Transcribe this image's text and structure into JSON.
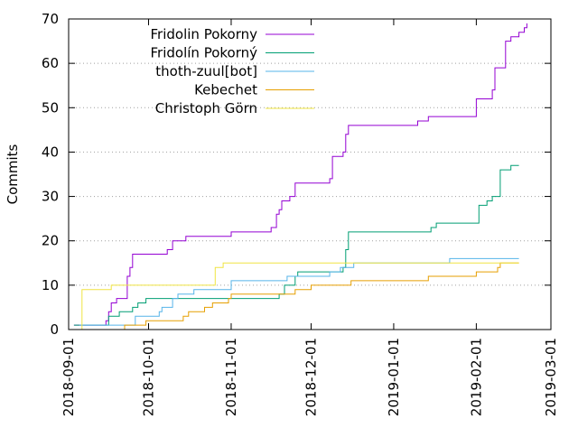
{
  "chart_data": {
    "type": "line",
    "ylabel": "Commits",
    "xlabel": "",
    "ylim": [
      0,
      70
    ],
    "xlim": [
      "2018-09-01",
      "2019-03-01"
    ],
    "yticks": [
      "0",
      "10",
      "20",
      "30",
      "40",
      "50",
      "60",
      "70"
    ],
    "xticks": [
      "2018-09-01",
      "2018-10-01",
      "2018-11-01",
      "2018-12-01",
      "2019-01-01",
      "2019-02-01",
      "2019-03-01"
    ],
    "grid": "horizontal dotted",
    "legend_position": "top-left",
    "step": true,
    "series": [
      {
        "name": "Fridolin Pokorny",
        "color": "#9400d3",
        "points": [
          [
            "2018-09-03",
            1
          ],
          [
            "2018-09-10",
            1
          ],
          [
            "2018-09-15",
            2
          ],
          [
            "2018-09-16",
            4
          ],
          [
            "2018-09-17",
            6
          ],
          [
            "2018-09-19",
            7
          ],
          [
            "2018-09-22",
            7
          ],
          [
            "2018-09-23",
            12
          ],
          [
            "2018-09-24",
            14
          ],
          [
            "2018-09-25",
            17
          ],
          [
            "2018-10-05",
            17
          ],
          [
            "2018-10-08",
            18
          ],
          [
            "2018-10-10",
            20
          ],
          [
            "2018-10-12",
            20
          ],
          [
            "2018-10-15",
            21
          ],
          [
            "2018-10-30",
            21
          ],
          [
            "2018-11-01",
            22
          ],
          [
            "2018-11-10",
            22
          ],
          [
            "2018-11-16",
            23
          ],
          [
            "2018-11-17",
            23
          ],
          [
            "2018-11-18",
            26
          ],
          [
            "2018-11-19",
            27
          ],
          [
            "2018-11-20",
            29
          ],
          [
            "2018-11-23",
            30
          ],
          [
            "2018-11-25",
            33
          ],
          [
            "2018-12-05",
            33
          ],
          [
            "2018-12-08",
            34
          ],
          [
            "2018-12-09",
            39
          ],
          [
            "2018-12-13",
            40
          ],
          [
            "2018-12-14",
            44
          ],
          [
            "2018-12-15",
            46
          ],
          [
            "2019-01-01",
            46
          ],
          [
            "2019-01-10",
            47
          ],
          [
            "2019-01-14",
            48
          ],
          [
            "2019-02-01",
            48
          ],
          [
            "2019-02-01",
            52
          ],
          [
            "2019-02-07",
            54
          ],
          [
            "2019-02-08",
            59
          ],
          [
            "2019-02-11",
            59
          ],
          [
            "2019-02-12",
            65
          ],
          [
            "2019-02-14",
            66
          ],
          [
            "2019-02-17",
            67
          ],
          [
            "2019-02-19",
            68
          ],
          [
            "2019-02-20",
            69
          ]
        ]
      },
      {
        "name": "Fridolín Pokorný",
        "color": "#009e73",
        "points": [
          [
            "2018-09-03",
            1
          ],
          [
            "2018-09-15",
            1
          ],
          [
            "2018-09-16",
            3
          ],
          [
            "2018-09-20",
            4
          ],
          [
            "2018-09-25",
            5
          ],
          [
            "2018-09-27",
            6
          ],
          [
            "2018-09-30",
            7
          ],
          [
            "2018-10-20",
            7
          ],
          [
            "2018-11-01",
            7
          ],
          [
            "2018-11-18",
            7
          ],
          [
            "2018-11-19",
            8
          ],
          [
            "2018-11-21",
            10
          ],
          [
            "2018-11-25",
            12
          ],
          [
            "2018-11-26",
            13
          ],
          [
            "2018-12-04",
            13
          ],
          [
            "2018-12-13",
            14
          ],
          [
            "2018-12-14",
            18
          ],
          [
            "2018-12-15",
            22
          ],
          [
            "2019-01-10",
            22
          ],
          [
            "2019-01-15",
            23
          ],
          [
            "2019-01-17",
            24
          ],
          [
            "2019-02-01",
            24
          ],
          [
            "2019-02-02",
            28
          ],
          [
            "2019-02-05",
            29
          ],
          [
            "2019-02-07",
            30
          ],
          [
            "2019-02-10",
            36
          ],
          [
            "2019-02-14",
            37
          ],
          [
            "2019-02-17",
            37
          ]
        ]
      },
      {
        "name": "thoth-zuul[bot]",
        "color": "#56b4e9",
        "points": [
          [
            "2018-09-05",
            1
          ],
          [
            "2018-09-19",
            1
          ],
          [
            "2018-09-26",
            3
          ],
          [
            "2018-10-05",
            4
          ],
          [
            "2018-10-06",
            5
          ],
          [
            "2018-10-10",
            7
          ],
          [
            "2018-10-12",
            8
          ],
          [
            "2018-10-18",
            9
          ],
          [
            "2018-10-30",
            9
          ],
          [
            "2018-11-01",
            11
          ],
          [
            "2018-11-20",
            11
          ],
          [
            "2018-11-22",
            12
          ],
          [
            "2018-12-01",
            12
          ],
          [
            "2018-12-08",
            13
          ],
          [
            "2018-12-12",
            14
          ],
          [
            "2018-12-15",
            14
          ],
          [
            "2018-12-17",
            15
          ],
          [
            "2019-01-10",
            15
          ],
          [
            "2019-01-22",
            16
          ],
          [
            "2019-02-17",
            16
          ]
        ]
      },
      {
        "name": "Kebechet",
        "color": "#e69f00",
        "points": [
          [
            "2018-09-20",
            0
          ],
          [
            "2018-09-22",
            1
          ],
          [
            "2018-09-29",
            1
          ],
          [
            "2018-09-30",
            2
          ],
          [
            "2018-10-13",
            2
          ],
          [
            "2018-10-14",
            3
          ],
          [
            "2018-10-16",
            4
          ],
          [
            "2018-10-22",
            5
          ],
          [
            "2018-10-25",
            6
          ],
          [
            "2018-10-31",
            7
          ],
          [
            "2018-11-01",
            8
          ],
          [
            "2018-11-15",
            8
          ],
          [
            "2018-11-24",
            8
          ],
          [
            "2018-11-25",
            9
          ],
          [
            "2018-12-01",
            10
          ],
          [
            "2018-12-10",
            10
          ],
          [
            "2018-12-16",
            11
          ],
          [
            "2019-01-10",
            11
          ],
          [
            "2019-01-14",
            12
          ],
          [
            "2019-01-20",
            12
          ],
          [
            "2019-02-01",
            13
          ],
          [
            "2019-02-07",
            13
          ],
          [
            "2019-02-09",
            14
          ],
          [
            "2019-02-10",
            15
          ],
          [
            "2019-02-17",
            15
          ]
        ]
      },
      {
        "name": "Christoph Görn",
        "color": "#f0e442",
        "points": [
          [
            "2018-09-05",
            0
          ],
          [
            "2018-09-06",
            9
          ],
          [
            "2018-09-16",
            9
          ],
          [
            "2018-09-17",
            10
          ],
          [
            "2018-10-25",
            10
          ],
          [
            "2018-10-26",
            14
          ],
          [
            "2018-10-29",
            15
          ],
          [
            "2019-02-17",
            15
          ]
        ]
      }
    ]
  }
}
